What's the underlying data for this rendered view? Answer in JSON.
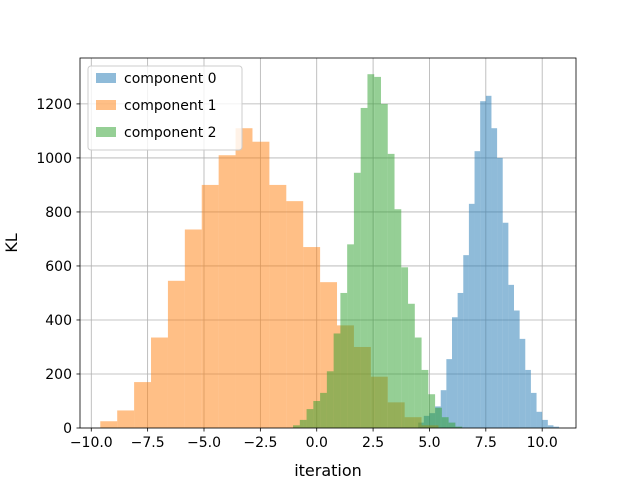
{
  "chart_data": {
    "type": "histogram",
    "title": "",
    "xlabel": "iteration",
    "ylabel": "KL",
    "xlim": [
      -10.5,
      11.5
    ],
    "ylim": [
      0,
      1370
    ],
    "grid": true,
    "legend_position": "top-left",
    "x_ticks": [
      -10.0,
      -7.5,
      -5.0,
      -2.5,
      0.0,
      2.5,
      5.0,
      7.5,
      10.0
    ],
    "x_tick_labels": [
      "−10.0",
      "−7.5",
      "−5.0",
      "−2.5",
      "0.0",
      "2.5",
      "5.0",
      "7.5",
      "10.0"
    ],
    "y_ticks": [
      0,
      200,
      400,
      600,
      800,
      1000,
      1200
    ],
    "y_tick_labels": [
      "0",
      "200",
      "400",
      "600",
      "800",
      "1000",
      "1200"
    ],
    "series": [
      {
        "name": "component 0",
        "color": "#1f77b4",
        "alpha": 0.5,
        "bins": [
          {
            "x0": 4.5,
            "x1": 4.75,
            "y": 20
          },
          {
            "x0": 4.75,
            "x1": 5.0,
            "y": 45
          },
          {
            "x0": 5.0,
            "x1": 5.25,
            "y": 55
          },
          {
            "x0": 5.25,
            "x1": 5.5,
            "y": 80
          },
          {
            "x0": 5.5,
            "x1": 5.75,
            "y": 140
          },
          {
            "x0": 5.75,
            "x1": 6.0,
            "y": 255
          },
          {
            "x0": 6.0,
            "x1": 6.25,
            "y": 410
          },
          {
            "x0": 6.25,
            "x1": 6.5,
            "y": 500
          },
          {
            "x0": 6.5,
            "x1": 6.75,
            "y": 640
          },
          {
            "x0": 6.75,
            "x1": 7.0,
            "y": 830
          },
          {
            "x0": 7.0,
            "x1": 7.25,
            "y": 1025
          },
          {
            "x0": 7.25,
            "x1": 7.5,
            "y": 1210
          },
          {
            "x0": 7.5,
            "x1": 7.75,
            "y": 1230
          },
          {
            "x0": 7.75,
            "x1": 8.0,
            "y": 1110
          },
          {
            "x0": 8.0,
            "x1": 8.25,
            "y": 1000
          },
          {
            "x0": 8.25,
            "x1": 8.5,
            "y": 760
          },
          {
            "x0": 8.5,
            "x1": 8.75,
            "y": 530
          },
          {
            "x0": 8.75,
            "x1": 9.0,
            "y": 435
          },
          {
            "x0": 9.0,
            "x1": 9.25,
            "y": 330
          },
          {
            "x0": 9.25,
            "x1": 9.5,
            "y": 215
          },
          {
            "x0": 9.5,
            "x1": 9.75,
            "y": 130
          },
          {
            "x0": 9.75,
            "x1": 10.0,
            "y": 60
          },
          {
            "x0": 10.0,
            "x1": 10.25,
            "y": 30
          },
          {
            "x0": 10.25,
            "x1": 10.5,
            "y": 10
          },
          {
            "x0": 10.5,
            "x1": 10.75,
            "y": 5
          }
        ]
      },
      {
        "name": "component 1",
        "color": "#ff7f0e",
        "alpha": 0.5,
        "bins": [
          {
            "x0": -9.6,
            "x1": -8.85,
            "y": 25
          },
          {
            "x0": -8.85,
            "x1": -8.1,
            "y": 65
          },
          {
            "x0": -8.1,
            "x1": -7.35,
            "y": 170
          },
          {
            "x0": -7.35,
            "x1": -6.6,
            "y": 335
          },
          {
            "x0": -6.6,
            "x1": -5.85,
            "y": 545
          },
          {
            "x0": -5.85,
            "x1": -5.1,
            "y": 735
          },
          {
            "x0": -5.1,
            "x1": -4.35,
            "y": 900
          },
          {
            "x0": -4.35,
            "x1": -3.6,
            "y": 1010
          },
          {
            "x0": -3.6,
            "x1": -2.85,
            "y": 1110
          },
          {
            "x0": -2.85,
            "x1": -2.1,
            "y": 1060
          },
          {
            "x0": -2.1,
            "x1": -1.35,
            "y": 900
          },
          {
            "x0": -1.35,
            "x1": -0.6,
            "y": 840
          },
          {
            "x0": -0.6,
            "x1": 0.15,
            "y": 670
          },
          {
            "x0": 0.15,
            "x1": 0.9,
            "y": 540
          },
          {
            "x0": 0.9,
            "x1": 1.65,
            "y": 380
          },
          {
            "x0": 1.65,
            "x1": 2.4,
            "y": 300
          },
          {
            "x0": 2.4,
            "x1": 3.15,
            "y": 190
          },
          {
            "x0": 3.15,
            "x1": 3.9,
            "y": 95
          },
          {
            "x0": 3.9,
            "x1": 4.65,
            "y": 40
          },
          {
            "x0": 4.65,
            "x1": 5.4,
            "y": 10
          }
        ]
      },
      {
        "name": "component 2",
        "color": "#2ca02c",
        "alpha": 0.5,
        "bins": [
          {
            "x0": -1.05,
            "x1": -0.75,
            "y": 10
          },
          {
            "x0": -0.75,
            "x1": -0.45,
            "y": 30
          },
          {
            "x0": -0.45,
            "x1": -0.15,
            "y": 70
          },
          {
            "x0": -0.15,
            "x1": 0.15,
            "y": 100
          },
          {
            "x0": 0.15,
            "x1": 0.45,
            "y": 130
          },
          {
            "x0": 0.45,
            "x1": 0.75,
            "y": 210
          },
          {
            "x0": 0.75,
            "x1": 1.05,
            "y": 350
          },
          {
            "x0": 1.05,
            "x1": 1.35,
            "y": 500
          },
          {
            "x0": 1.35,
            "x1": 1.65,
            "y": 680
          },
          {
            "x0": 1.65,
            "x1": 1.95,
            "y": 945
          },
          {
            "x0": 1.95,
            "x1": 2.25,
            "y": 1185
          },
          {
            "x0": 2.25,
            "x1": 2.55,
            "y": 1310
          },
          {
            "x0": 2.55,
            "x1": 2.85,
            "y": 1300
          },
          {
            "x0": 2.85,
            "x1": 3.15,
            "y": 1200
          },
          {
            "x0": 3.15,
            "x1": 3.45,
            "y": 1015
          },
          {
            "x0": 3.45,
            "x1": 3.75,
            "y": 810
          },
          {
            "x0": 3.75,
            "x1": 4.05,
            "y": 595
          },
          {
            "x0": 4.05,
            "x1": 4.35,
            "y": 460
          },
          {
            "x0": 4.35,
            "x1": 4.65,
            "y": 335
          },
          {
            "x0": 4.65,
            "x1": 4.95,
            "y": 215
          },
          {
            "x0": 4.95,
            "x1": 5.25,
            "y": 125
          },
          {
            "x0": 5.25,
            "x1": 5.55,
            "y": 75
          },
          {
            "x0": 5.55,
            "x1": 5.85,
            "y": 40
          },
          {
            "x0": 5.85,
            "x1": 6.15,
            "y": 20
          },
          {
            "x0": 6.15,
            "x1": 6.45,
            "y": 5
          }
        ]
      }
    ]
  }
}
